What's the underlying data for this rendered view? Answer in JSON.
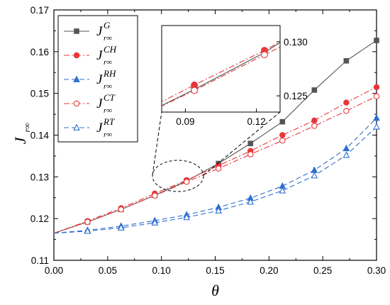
{
  "chart_data": [
    {
      "type": "line",
      "xlabel": "θ",
      "ylabel": "J",
      "ylabel_sub": "r∞",
      "xlim": [
        0.0,
        0.3
      ],
      "ylim": [
        0.11,
        0.17
      ],
      "xticks": [
        "0.00",
        "0.05",
        "0.10",
        "0.15",
        "0.20",
        "0.25",
        "0.30"
      ],
      "yticks": [
        "0.11",
        "0.12",
        "0.13",
        "0.14",
        "0.15",
        "0.16",
        "0.17"
      ],
      "grid": false,
      "legend_position": "top-left",
      "series": [
        {
          "name": "J",
          "name_sup": "G",
          "name_sub": "r∞",
          "color": "#555555",
          "dash": "solid",
          "marker": "square-filled",
          "x": [
            0.0,
            0.0313,
            0.0625,
            0.0938,
            0.1234,
            0.1531,
            0.1828,
            0.2125,
            0.2422,
            0.2719,
            0.3
          ],
          "y": [
            0.1165,
            0.1192,
            0.1222,
            0.1256,
            0.129,
            0.1332,
            0.138,
            0.1432,
            0.1508,
            0.1578,
            0.1627
          ]
        },
        {
          "name": "J",
          "name_sup": "CH",
          "name_sub": "r∞",
          "color": "#e8373a",
          "dash": "dashdot",
          "marker": "circle-filled",
          "x": [
            0.0,
            0.0313,
            0.0625,
            0.0938,
            0.1234,
            0.1531,
            0.1828,
            0.2125,
            0.2422,
            0.2719,
            0.3
          ],
          "y": [
            0.1165,
            0.1194,
            0.1225,
            0.126,
            0.1292,
            0.1327,
            0.1362,
            0.14,
            0.1435,
            0.1478,
            0.1515
          ]
        },
        {
          "name": "J",
          "name_sup": "RH",
          "name_sub": "r∞",
          "color": "#2d6fd0",
          "dash": "dashed",
          "marker": "triangle-filled",
          "x": [
            0.0,
            0.0313,
            0.0625,
            0.0938,
            0.1234,
            0.1531,
            0.1828,
            0.2125,
            0.2422,
            0.2719,
            0.3
          ],
          "y": [
            0.1165,
            0.1172,
            0.1182,
            0.1195,
            0.1209,
            0.1227,
            0.1249,
            0.1278,
            0.1316,
            0.1368,
            0.1441
          ]
        },
        {
          "name": "J",
          "name_sup": "CT",
          "name_sub": "r∞",
          "color": "#e8373a",
          "dash": "dashdot",
          "marker": "circle-open",
          "x": [
            0.0,
            0.0313,
            0.0625,
            0.0938,
            0.1234,
            0.1531,
            0.1828,
            0.2125,
            0.2422,
            0.2719,
            0.3
          ],
          "y": [
            0.1165,
            0.1192,
            0.1222,
            0.1255,
            0.1288,
            0.132,
            0.1354,
            0.1387,
            0.1422,
            0.1458,
            0.1493
          ]
        },
        {
          "name": "J",
          "name_sup": "RT",
          "name_sub": "r∞",
          "color": "#2d6fd0",
          "dash": "dashed",
          "marker": "triangle-open",
          "x": [
            0.0,
            0.0313,
            0.0625,
            0.0938,
            0.1234,
            0.1531,
            0.1828,
            0.2125,
            0.2422,
            0.2719,
            0.3
          ],
          "y": [
            0.1165,
            0.117,
            0.1178,
            0.119,
            0.1203,
            0.1219,
            0.124,
            0.1267,
            0.1303,
            0.1352,
            0.142
          ]
        }
      ]
    },
    {
      "type": "line",
      "role": "inset",
      "xlim": [
        0.08,
        0.13
      ],
      "ylim": [
        0.1235,
        0.1315
      ],
      "xticks": [
        "0.09",
        "0.12"
      ],
      "yticks": [
        "0.125",
        "0.130"
      ],
      "series_ref": "main"
    }
  ]
}
